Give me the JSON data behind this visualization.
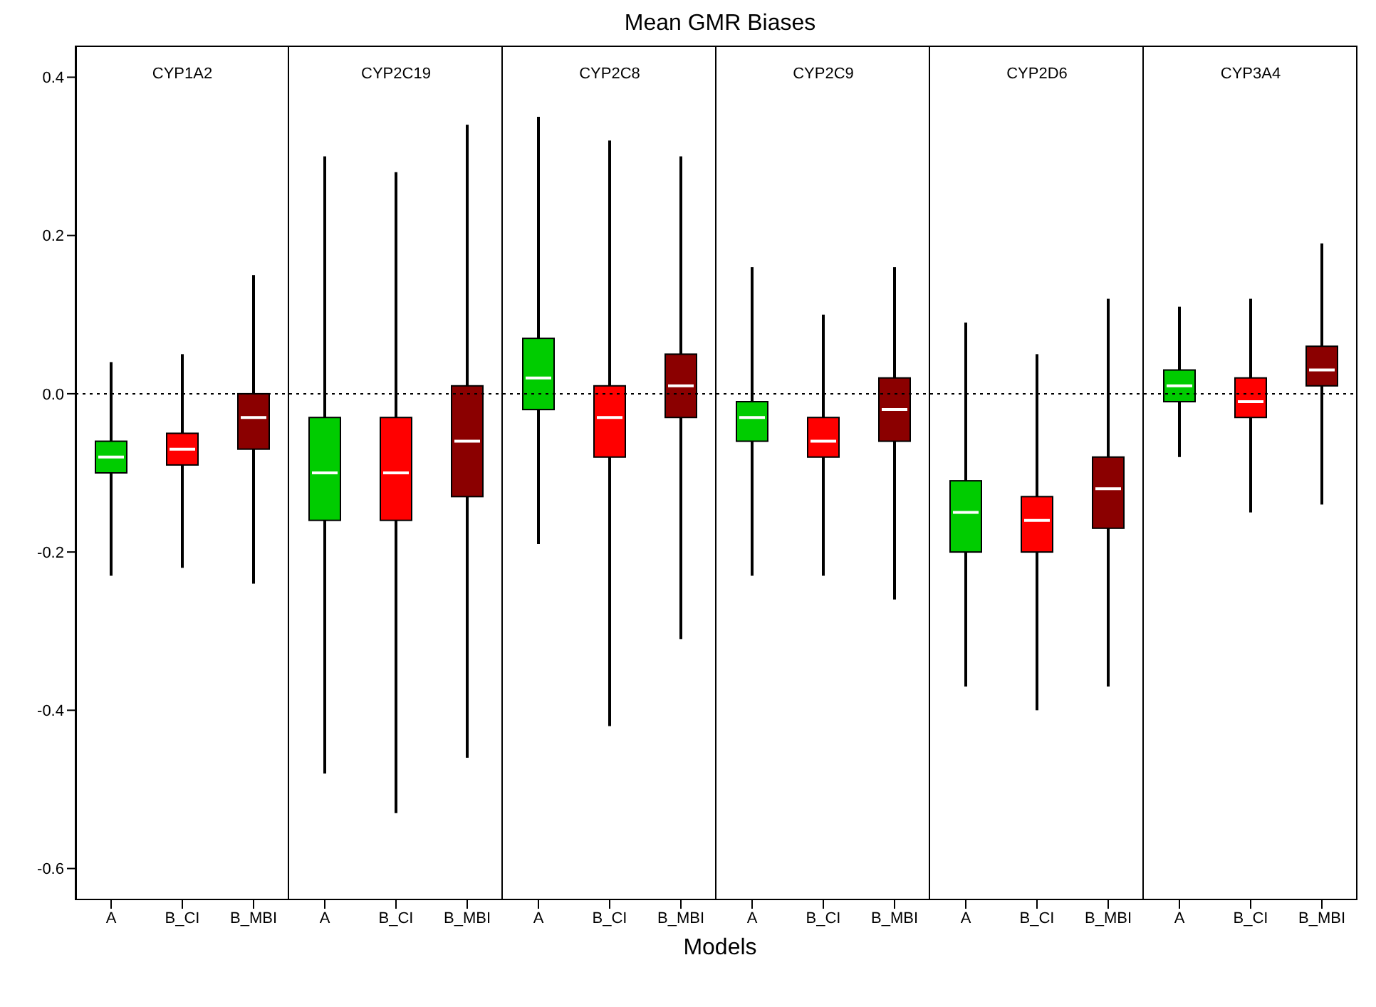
{
  "chart_data": [
    {
      "type": "box",
      "title": "CYP1A2",
      "annotations": [
        "Mean GMR Biases",
        "Models"
      ],
      "categories": [
        "A",
        "B_CI",
        "B_MBI"
      ],
      "colors": [
        "#00cc00",
        "#ff0000",
        "#8b0000"
      ],
      "ylim": [
        -0.64,
        0.44
      ],
      "yticks": [
        -0.6,
        -0.4,
        -0.2,
        {
          "value": 0,
          "label": "0.0"
        },
        0.2,
        0.4
      ],
      "ref_lines": [
        {
          "axis": "y",
          "value": 0,
          "line_style": "dotted"
        }
      ],
      "boxes": [
        {
          "low": -0.23,
          "q1": -0.1,
          "median": -0.08,
          "q3": -0.06,
          "high": 0.04
        },
        {
          "low": -0.22,
          "q1": -0.09,
          "median": -0.07,
          "q3": -0.05,
          "high": 0.05
        },
        {
          "low": -0.24,
          "q1": -0.07,
          "median": -0.03,
          "q3": 0.0,
          "high": 0.15
        }
      ]
    },
    {
      "type": "box",
      "title": "CYP2C19",
      "categories": [
        "A",
        "B_CI",
        "B_MBI"
      ],
      "colors": [
        "#00cc00",
        "#ff0000",
        "#8b0000"
      ],
      "ylim": [
        -0.64,
        0.44
      ],
      "tick_labels": "x",
      "ref_lines": [
        {
          "axis": "y",
          "value": 0,
          "line_style": "dotted"
        }
      ],
      "boxes": [
        {
          "low": -0.48,
          "q1": -0.16,
          "median": -0.1,
          "q3": -0.03,
          "high": 0.3
        },
        {
          "low": -0.53,
          "q1": -0.16,
          "median": -0.1,
          "q3": -0.03,
          "high": 0.28
        },
        {
          "low": -0.46,
          "q1": -0.13,
          "median": -0.06,
          "q3": 0.01,
          "high": 0.34
        }
      ]
    },
    {
      "type": "box",
      "title": "CYP2C8",
      "categories": [
        "A",
        "B_CI",
        "B_MBI"
      ],
      "colors": [
        "#00cc00",
        "#ff0000",
        "#8b0000"
      ],
      "ylim": [
        -0.64,
        0.44
      ],
      "tick_labels": "x",
      "ref_lines": [
        {
          "axis": "y",
          "value": 0,
          "line_style": "dotted"
        }
      ],
      "boxes": [
        {
          "low": -0.19,
          "q1": -0.02,
          "median": 0.02,
          "q3": 0.07,
          "high": 0.35
        },
        {
          "low": -0.42,
          "q1": -0.08,
          "median": -0.03,
          "q3": 0.01,
          "high": 0.32
        },
        {
          "low": -0.31,
          "q1": -0.03,
          "median": 0.01,
          "q3": 0.05,
          "high": 0.3
        }
      ]
    },
    {
      "type": "box",
      "title": "CYP2C9",
      "categories": [
        "A",
        "B_CI",
        "B_MBI"
      ],
      "colors": [
        "#00cc00",
        "#ff0000",
        "#8b0000"
      ],
      "ylim": [
        -0.64,
        0.44
      ],
      "tick_labels": "x",
      "ref_lines": [
        {
          "axis": "y",
          "value": 0,
          "line_style": "dotted"
        }
      ],
      "boxes": [
        {
          "low": -0.23,
          "q1": -0.06,
          "median": -0.03,
          "q3": -0.01,
          "high": 0.16
        },
        {
          "low": -0.23,
          "q1": -0.08,
          "median": -0.06,
          "q3": -0.03,
          "high": 0.1
        },
        {
          "low": -0.26,
          "q1": -0.06,
          "median": -0.02,
          "q3": 0.02,
          "high": 0.16
        }
      ]
    },
    {
      "type": "box",
      "title": "CYP2D6",
      "categories": [
        "A",
        "B_CI",
        "B_MBI"
      ],
      "colors": [
        "#00cc00",
        "#ff0000",
        "#8b0000"
      ],
      "ylim": [
        -0.64,
        0.44
      ],
      "tick_labels": "x",
      "ref_lines": [
        {
          "axis": "y",
          "value": 0,
          "line_style": "dotted"
        }
      ],
      "boxes": [
        {
          "low": -0.37,
          "q1": -0.2,
          "median": -0.15,
          "q3": -0.11,
          "high": 0.09
        },
        {
          "low": -0.4,
          "q1": -0.2,
          "median": -0.16,
          "q3": -0.13,
          "high": 0.05
        },
        {
          "low": -0.37,
          "q1": -0.17,
          "median": -0.12,
          "q3": -0.08,
          "high": 0.12
        }
      ]
    },
    {
      "type": "box",
      "title": "CYP3A4",
      "categories": [
        "A",
        "B_CI",
        "B_MBI"
      ],
      "colors": [
        "#00cc00",
        "#ff0000",
        "#8b0000"
      ],
      "ylim": [
        -0.64,
        0.44
      ],
      "tick_labels": "x",
      "ref_lines": [
        {
          "axis": "y",
          "value": 0,
          "line_style": "dotted"
        }
      ],
      "boxes": [
        {
          "low": -0.08,
          "q1": -0.01,
          "median": 0.01,
          "q3": 0.03,
          "high": 0.11
        },
        {
          "low": -0.15,
          "q1": -0.03,
          "median": -0.01,
          "q3": 0.02,
          "high": 0.12
        },
        {
          "low": -0.14,
          "q1": 0.01,
          "median": 0.03,
          "q3": 0.06,
          "high": 0.19
        }
      ]
    }
  ]
}
